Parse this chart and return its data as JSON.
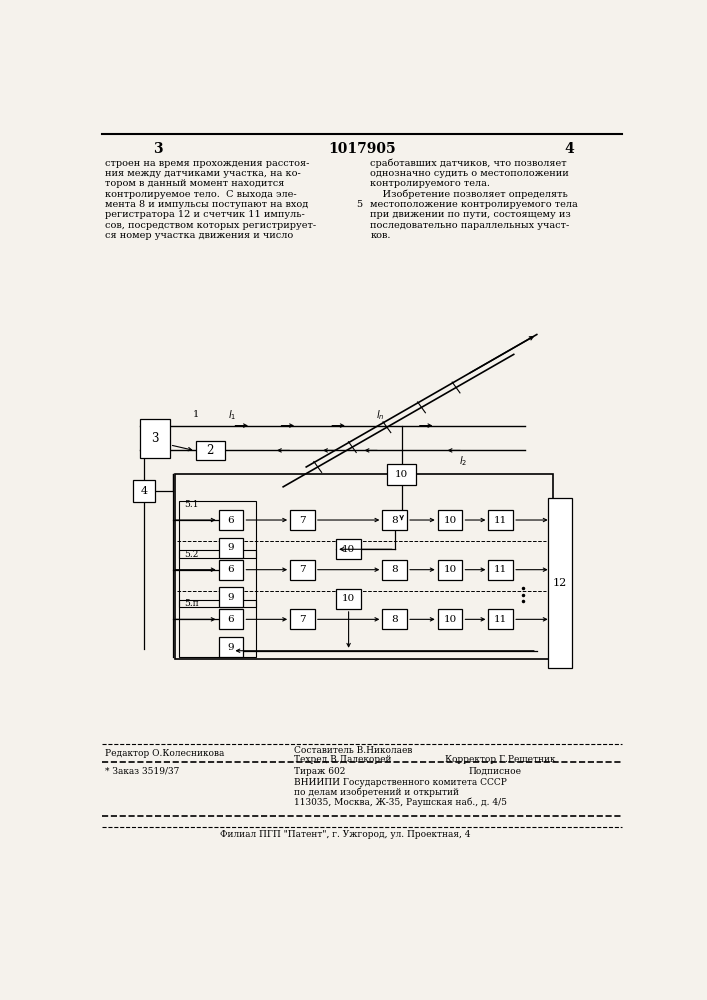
{
  "bg_color": "#f5f2ec",
  "page_number_left": "3",
  "page_number_center": "1017905",
  "page_number_right": "4",
  "text_left_col": [
    "строен на время прохождения расстоя-",
    "ния между датчиками участка, на ко-",
    "тором в данный момент находится",
    "контролируемое тело.  С выхода эле-",
    "мента 8 и импульсы поступают на вход",
    "регистратора 12 и счетчик 11 импуль-",
    "сов, посредством которых регистрирует-",
    "ся номер участка движения и число"
  ],
  "text_right_col": [
    "сработавших датчиков, что позволяет",
    "однозначно судить о местоположении",
    "контролируемого тела.",
    "    Изобретение позволяет определять",
    "местоположение контролируемого тела",
    "при движении по пути, состоящему из",
    "последовательно параллельных участ-",
    "ков."
  ],
  "footnote_editor": "Редактор О.Колесникова",
  "footnote_sostavitel": "Составитель В.Николаев",
  "footnote_tehred": "Техред В.Далекорей",
  "footnote_korrektor": "Корректор Г.Решетник",
  "footnote_zakaz": "* Заказ 3519/37",
  "footnote_tirazh": "Тираж 602",
  "footnote_podpisnoe": "Подписное",
  "footnote_vniipи": "ВНИИПИ Государственного комитета СССР",
  "footnote_po": "по делам изобретений и открытий",
  "footnote_address": "113035, Москва, Ж-35, Раушская наб., д. 4/5",
  "footnote_filial": "Филиал ПГП \"Патент\", г. Ужгород, ул. Проектная, 4"
}
